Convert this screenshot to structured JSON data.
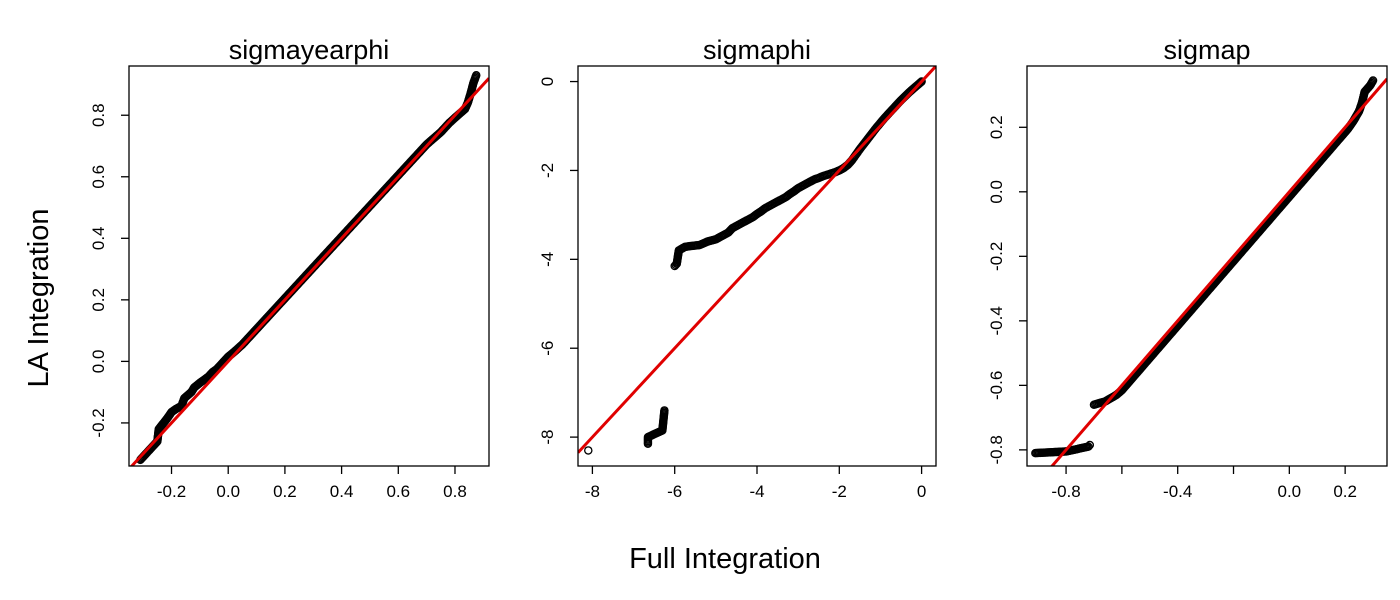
{
  "figure": {
    "shared_xlabel": "Full Integration",
    "shared_ylabel": "LA Integration"
  },
  "chart_data": [
    {
      "type": "scatter",
      "title": "sigmayearphi",
      "xlabel": "Full Integration",
      "ylabel": "LA Integration",
      "xlim": [
        -0.35,
        0.92
      ],
      "ylim": [
        -0.34,
        0.96
      ],
      "xticks": [
        -0.2,
        0.0,
        0.2,
        0.4,
        0.6,
        0.8
      ],
      "xtick_labels": [
        "-0.2",
        "0.0",
        "0.2",
        "0.4",
        "0.6",
        "0.8"
      ],
      "yticks": [
        -0.2,
        0.0,
        0.2,
        0.4,
        0.6,
        0.8
      ],
      "ytick_labels": [
        "-0.2",
        "0.0",
        "0.2",
        "0.4",
        "0.6",
        "0.8"
      ],
      "reference_line": {
        "slope": 1,
        "intercept": 0,
        "color": "#e00000"
      },
      "points": {
        "x": [
          -0.31,
          -0.25,
          -0.245,
          -0.215,
          -0.2,
          -0.185,
          -0.165,
          -0.155,
          -0.13,
          -0.12,
          -0.1,
          -0.085,
          -0.07,
          -0.055,
          -0.04,
          -0.03,
          -0.015,
          0.0,
          0.02,
          0.05,
          0.08,
          0.12,
          0.16,
          0.2,
          0.25,
          0.3,
          0.35,
          0.4,
          0.45,
          0.5,
          0.55,
          0.6,
          0.65,
          0.7,
          0.75,
          0.78,
          0.81,
          0.835,
          0.845,
          0.855,
          0.865,
          0.875
        ],
        "y": [
          -0.32,
          -0.26,
          -0.22,
          -0.185,
          -0.165,
          -0.155,
          -0.145,
          -0.12,
          -0.1,
          -0.085,
          -0.07,
          -0.06,
          -0.05,
          -0.035,
          -0.025,
          -0.015,
          0.0,
          0.015,
          0.03,
          0.055,
          0.085,
          0.125,
          0.165,
          0.205,
          0.255,
          0.305,
          0.355,
          0.405,
          0.455,
          0.505,
          0.555,
          0.605,
          0.655,
          0.705,
          0.745,
          0.775,
          0.8,
          0.82,
          0.84,
          0.87,
          0.905,
          0.93
        ]
      }
    },
    {
      "type": "scatter",
      "title": "sigmaphi",
      "xlabel": "Full Integration",
      "ylabel": "LA Integration",
      "xlim": [
        -8.35,
        0.35
      ],
      "ylim": [
        -8.65,
        0.35
      ],
      "xticks": [
        -8,
        -6,
        -4,
        -2,
        0
      ],
      "xtick_labels": [
        "-8",
        "-6",
        "-4",
        "-2",
        "0"
      ],
      "yticks": [
        -8,
        -6,
        -4,
        -2,
        0
      ],
      "yticks_labels_note": "",
      "ytick_labels": [
        "-8",
        "-6",
        "-4",
        "-2",
        "0"
      ],
      "reference_line": {
        "slope": 1,
        "intercept": 0,
        "color": "#e00000"
      },
      "points": {
        "x": [
          -8.1,
          -6.65,
          -6.65,
          -6.3,
          -6.25,
          -6.0,
          -5.95,
          -5.9,
          -5.75,
          -5.6,
          -5.4,
          -5.2,
          -5.0,
          -4.8,
          -4.7,
          -4.6,
          -4.5,
          -4.4,
          -4.3,
          -4.2,
          -4.1,
          -4.0,
          -3.9,
          -3.8,
          -3.7,
          -3.6,
          -3.5,
          -3.4,
          -3.3,
          -3.2,
          -3.1,
          -3.0,
          -2.9,
          -2.8,
          -2.7,
          -2.6,
          -2.5,
          -2.4,
          -2.3,
          -2.2,
          -2.1,
          -2.0,
          -1.9,
          -1.8,
          -1.7,
          -1.6,
          -1.5,
          -1.4,
          -1.3,
          -1.2,
          -1.1,
          -1.0,
          -0.9,
          -0.8,
          -0.7,
          -0.6,
          -0.5,
          -0.4,
          -0.3,
          -0.2,
          -0.1,
          0.0
        ],
        "y": [
          -8.3,
          -8.15,
          -8.0,
          -7.85,
          -7.4,
          -4.15,
          -4.1,
          -3.8,
          -3.72,
          -3.7,
          -3.68,
          -3.6,
          -3.55,
          -3.45,
          -3.4,
          -3.3,
          -3.25,
          -3.2,
          -3.15,
          -3.1,
          -3.05,
          -2.98,
          -2.92,
          -2.85,
          -2.8,
          -2.75,
          -2.7,
          -2.65,
          -2.6,
          -2.53,
          -2.47,
          -2.4,
          -2.35,
          -2.3,
          -2.25,
          -2.2,
          -2.17,
          -2.13,
          -2.1,
          -2.07,
          -2.04,
          -2.0,
          -1.95,
          -1.88,
          -1.78,
          -1.65,
          -1.52,
          -1.4,
          -1.28,
          -1.16,
          -1.04,
          -0.93,
          -0.82,
          -0.72,
          -0.62,
          -0.52,
          -0.42,
          -0.33,
          -0.24,
          -0.16,
          -0.08,
          0.0
        ]
      }
    },
    {
      "type": "scatter",
      "title": "sigmap",
      "xlabel": "Full Integration",
      "ylabel": "LA Integration",
      "xlim": [
        -0.94,
        0.35
      ],
      "ylim": [
        -0.85,
        0.39
      ],
      "xticks": [
        -0.8,
        -0.6,
        -0.4,
        -0.2,
        0.0,
        0.2
      ],
      "xtick_labels": [
        "-0.8",
        "",
        "-0.4",
        "",
        "0.0",
        "0.2"
      ],
      "yticks": [
        -0.8,
        -0.6,
        -0.4,
        -0.2,
        0.0,
        0.2
      ],
      "ytick_labels": [
        "-0.8",
        "-0.6",
        "-0.4",
        "-0.2",
        "0.0",
        "0.2"
      ],
      "reference_line": {
        "slope": 1,
        "intercept": 0,
        "color": "#e00000"
      },
      "points": {
        "x": [
          -0.91,
          -0.8,
          -0.72,
          -0.715,
          -0.7,
          -0.66,
          -0.64,
          -0.62,
          -0.6,
          -0.58,
          -0.55,
          -0.52,
          -0.5,
          -0.48,
          -0.45,
          -0.42,
          -0.4,
          -0.37,
          -0.34,
          -0.3,
          -0.27,
          -0.24,
          -0.2,
          -0.17,
          -0.14,
          -0.1,
          -0.07,
          -0.04,
          0.0,
          0.03,
          0.06,
          0.09,
          0.12,
          0.15,
          0.18,
          0.21,
          0.23,
          0.25,
          0.26,
          0.27,
          0.29,
          0.3
        ],
        "y": [
          -0.81,
          -0.805,
          -0.79,
          -0.785,
          -0.66,
          -0.65,
          -0.64,
          -0.63,
          -0.615,
          -0.595,
          -0.565,
          -0.535,
          -0.515,
          -0.495,
          -0.465,
          -0.435,
          -0.415,
          -0.385,
          -0.355,
          -0.315,
          -0.285,
          -0.255,
          -0.215,
          -0.185,
          -0.155,
          -0.115,
          -0.085,
          -0.055,
          -0.015,
          0.015,
          0.045,
          0.075,
          0.105,
          0.135,
          0.165,
          0.195,
          0.22,
          0.25,
          0.275,
          0.31,
          0.33,
          0.345
        ]
      }
    }
  ]
}
